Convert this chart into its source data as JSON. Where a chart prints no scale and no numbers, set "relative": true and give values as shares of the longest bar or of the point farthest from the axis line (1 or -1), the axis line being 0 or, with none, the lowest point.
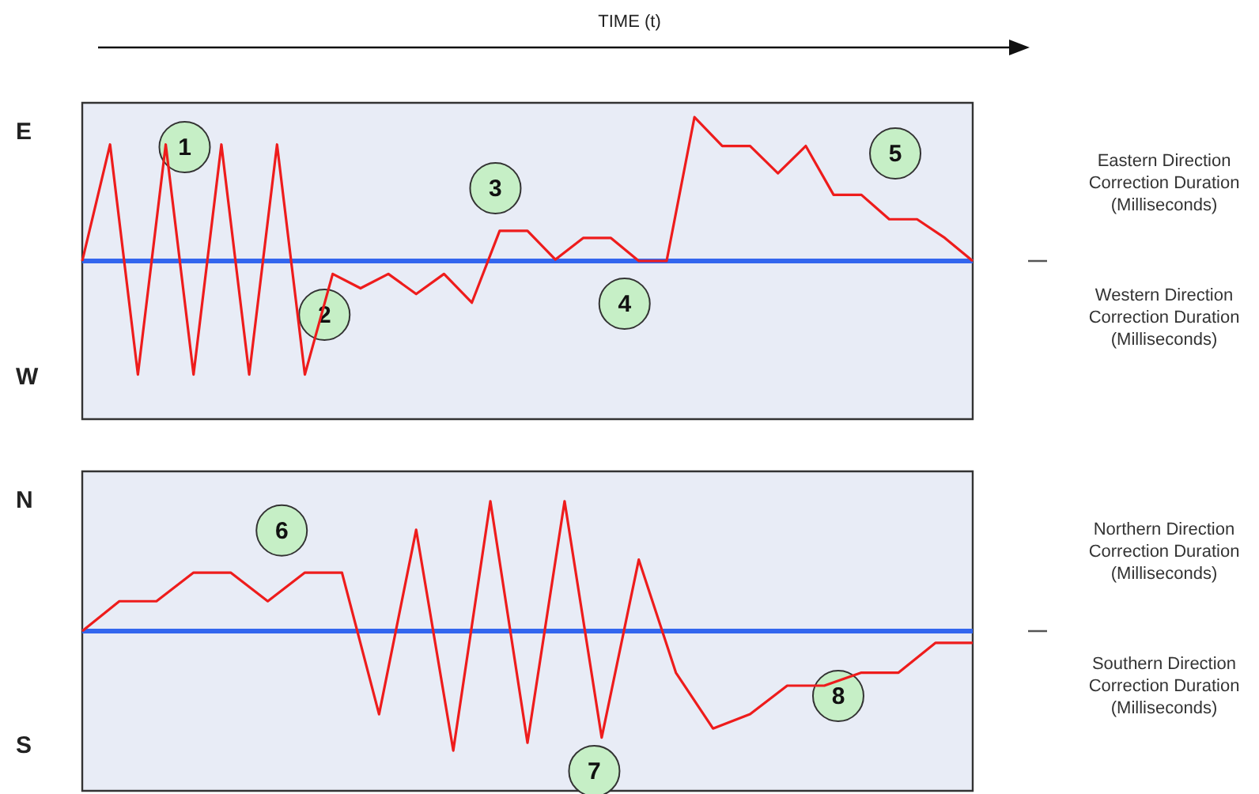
{
  "chart_data": [
    {
      "type": "line",
      "title": "TIME (t)",
      "relative": true,
      "tick_labels": false,
      "marker": "none",
      "categories": [
        null,
        null,
        null,
        null,
        null,
        null,
        null,
        null,
        null,
        null,
        null,
        null,
        null,
        null,
        null,
        null,
        null,
        null,
        null,
        null,
        null,
        null,
        null,
        null,
        null,
        null,
        null,
        null,
        null,
        null,
        null,
        null,
        null
      ],
      "series": [
        {
          "color": "#ee1c1c",
          "values": [
            0,
            0.81,
            -0.79,
            0.81,
            -0.79,
            0.81,
            -0.79,
            0.81,
            -0.79,
            -0.09,
            -0.19,
            -0.09,
            -0.23,
            -0.09,
            -0.29,
            0.21,
            0.21,
            0.01,
            0.16,
            0.16,
            0,
            0,
            1,
            0.8,
            0.8,
            0.61,
            0.8,
            0.46,
            0.46,
            0.29,
            0.29,
            0.16,
            0
          ]
        }
      ],
      "ref_lines": [
        {
          "axis": "y",
          "value": 0,
          "color": "#3366ee"
        }
      ],
      "annotations": [
        "E",
        "W",
        "Eastern Direction Correction Duration (Milliseconds)",
        "Western Direction Correction Duration (Milliseconds)",
        "1",
        "2",
        "3",
        "4",
        "5"
      ]
    },
    {
      "type": "line",
      "relative": true,
      "tick_labels": false,
      "marker": "none",
      "categories": [
        null,
        null,
        null,
        null,
        null,
        null,
        null,
        null,
        null,
        null,
        null,
        null,
        null,
        null,
        null,
        null,
        null,
        null,
        null,
        null,
        null,
        null,
        null,
        null,
        null
      ],
      "series": [
        {
          "color": "#ee1c1c",
          "values": [
            0,
            0.23,
            0.23,
            0.45,
            0.45,
            0.23,
            0.45,
            0.45,
            -0.64,
            0.78,
            -0.92,
            1,
            -0.86,
            1,
            -0.82,
            0.55,
            -0.32,
            -0.75,
            -0.64,
            -0.42,
            -0.42,
            -0.32,
            -0.32,
            -0.09,
            -0.09
          ]
        }
      ],
      "ref_lines": [
        {
          "axis": "y",
          "value": 0,
          "color": "#3366ee"
        }
      ],
      "annotations": [
        "N",
        "S",
        "Northern  Direction Correction Duration (Milliseconds)",
        "Southern Direction Correction Duration (Milliseconds)",
        "6",
        "7",
        "8"
      ]
    }
  ]
}
